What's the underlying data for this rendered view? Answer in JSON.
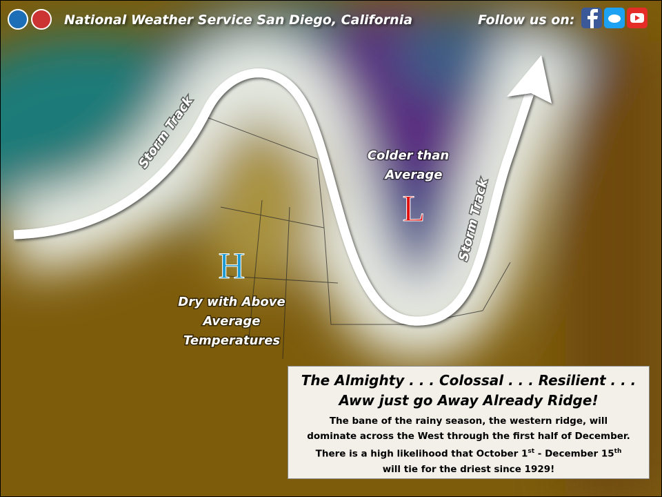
{
  "header": {
    "title": "National Weather Service San Diego, California",
    "follow": "Follow us on:"
  },
  "map": {
    "storm_track_labels": [
      "Storm Track",
      "Storm Track"
    ],
    "low": {
      "symbol": "L",
      "lines": [
        "Colder than",
        "Average"
      ]
    },
    "high": {
      "symbol": "H",
      "lines": [
        "Dry with Above",
        "Average",
        "Temperatures"
      ]
    }
  },
  "box": {
    "headline": [
      "The Almighty . . . Colossal . . . Resilient . . .",
      "Aww just go Away Already Ridge!"
    ],
    "body": [
      [
        "The bane of the rainy season, the western ridge, will"
      ],
      [
        "dominate across the West through the first half of December."
      ],
      [
        "There is a high likelihood that October 1",
        "st",
        " - December 15",
        "th"
      ],
      [
        "will tie for the driest since 1929!"
      ]
    ]
  }
}
